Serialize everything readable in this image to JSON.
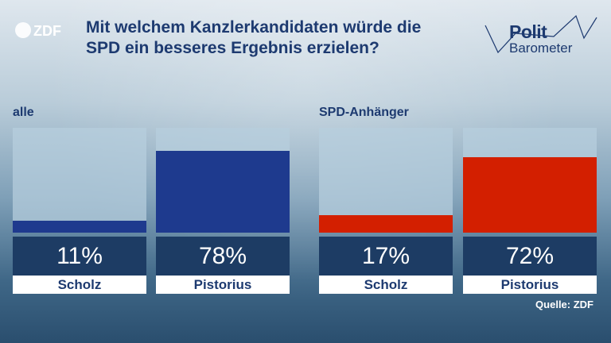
{
  "broadcaster_logo": "ZDF",
  "title": "Mit welchem Kanzlerkandidaten würde die SPD ein besseres Ergebnis erzielen?",
  "brand": {
    "line1": "Polit",
    "line2": "Barometer"
  },
  "source": "Quelle: ZDF",
  "chart_data": [
    {
      "type": "bar",
      "title": "alle",
      "categories": [
        "Scholz",
        "Pistorius"
      ],
      "values": [
        11,
        78
      ],
      "value_labels": [
        "11%",
        "78%"
      ],
      "ylim": [
        0,
        100
      ],
      "colors": [
        "#1e3a8e",
        "#1e3a8e"
      ]
    },
    {
      "type": "bar",
      "title": "SPD-Anhänger",
      "categories": [
        "Scholz",
        "Pistorius"
      ],
      "values": [
        17,
        72
      ],
      "value_labels": [
        "17%",
        "72%"
      ],
      "ylim": [
        0,
        100
      ],
      "colors": [
        "#d31f00",
        "#d31f00"
      ]
    }
  ]
}
